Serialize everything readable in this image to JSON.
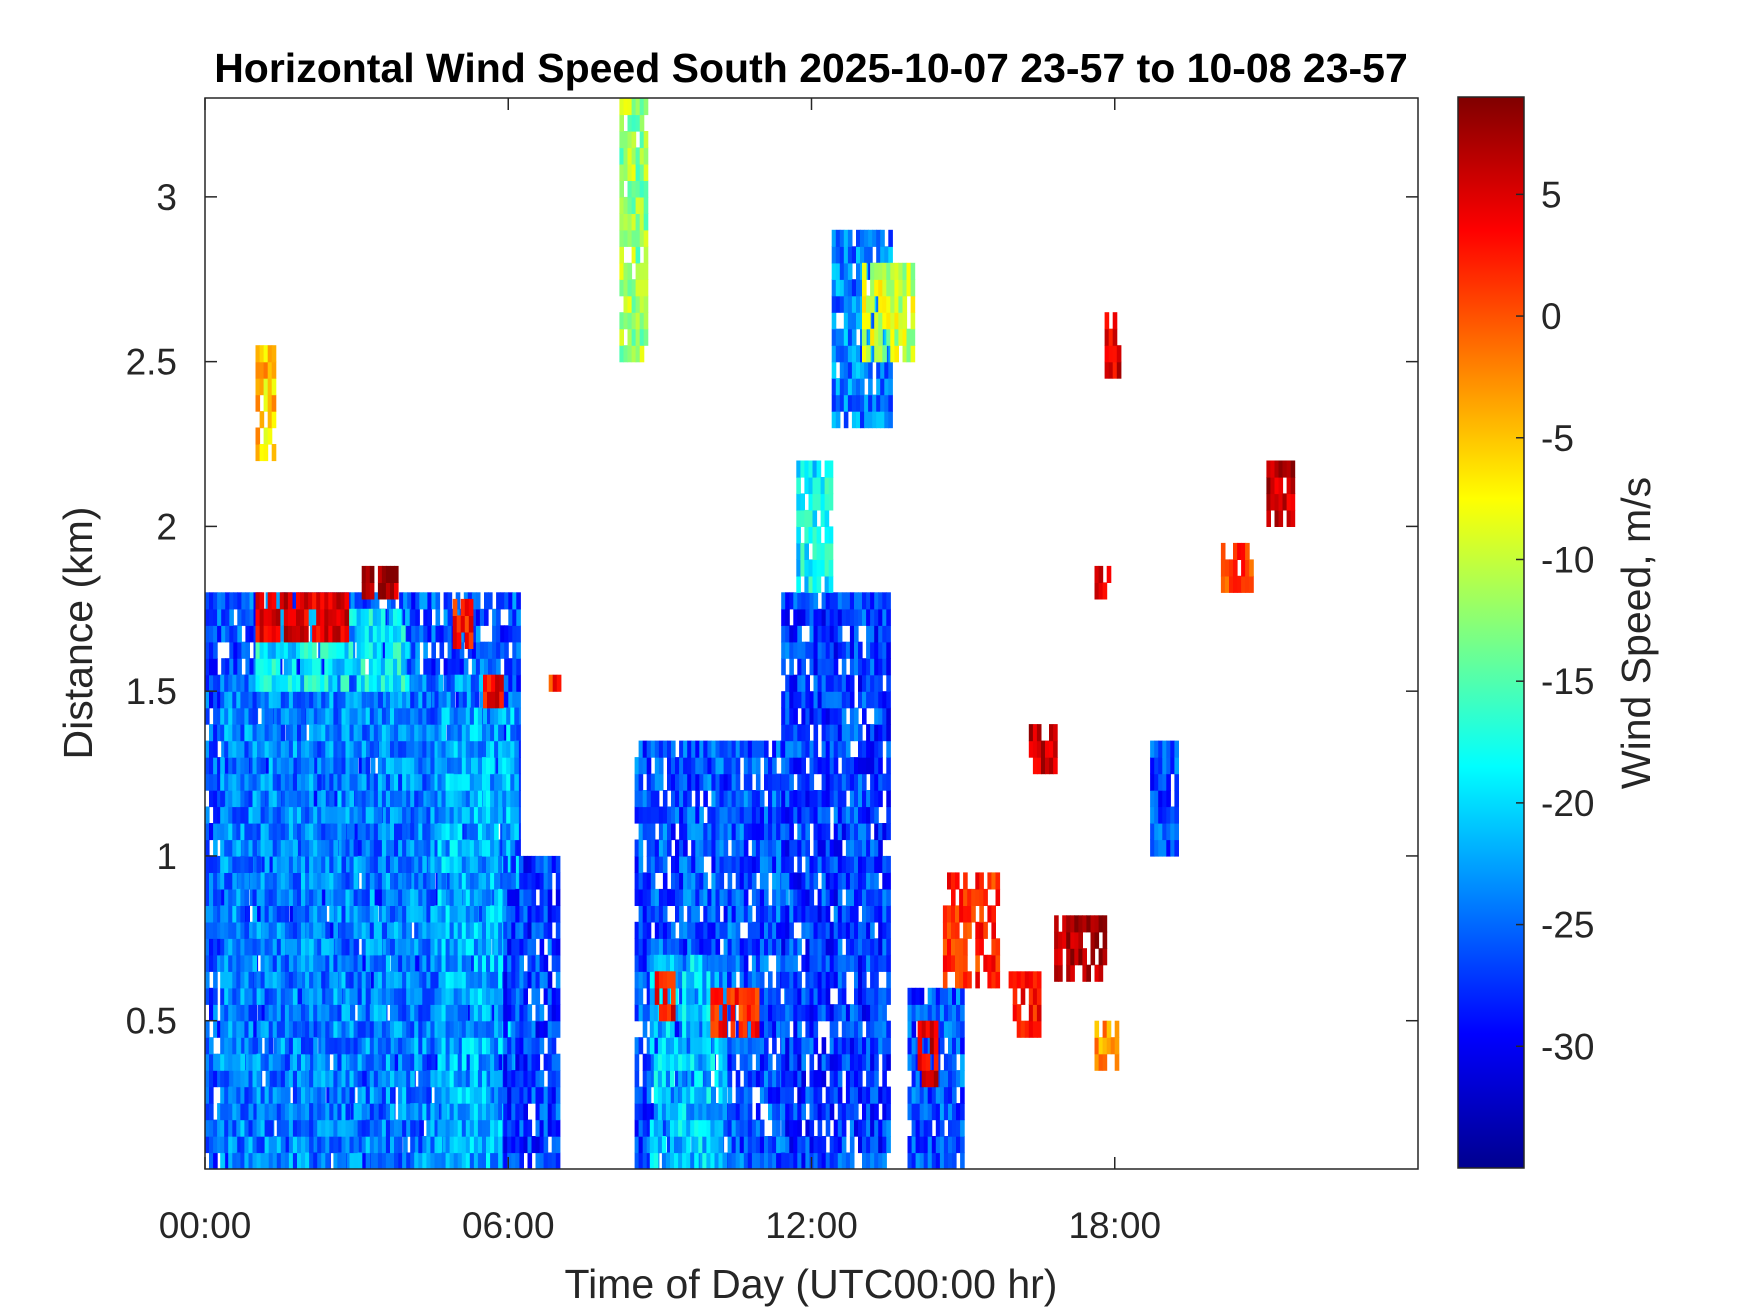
{
  "chart_data": {
    "type": "heatmap",
    "title": "Horizontal Wind Speed South 2025-10-07 23-57 to 10-08 23-57",
    "xlabel": "Time of Day (UTC00:00 hr)",
    "ylabel": "Distance (km)",
    "colorbar_label": "Wind Speed, m/s",
    "colormap": "jet",
    "xlim": [
      0,
      24
    ],
    "ylim": [
      0.05,
      3.3
    ],
    "clim": [
      -35,
      9
    ],
    "x_ticks": [
      {
        "value": 0,
        "label": "00:00"
      },
      {
        "value": 6,
        "label": "06:00"
      },
      {
        "value": 12,
        "label": "12:00"
      },
      {
        "value": 18,
        "label": "18:00"
      }
    ],
    "y_ticks": [
      {
        "value": 0.5,
        "label": "0.5"
      },
      {
        "value": 1,
        "label": "1"
      },
      {
        "value": 1.5,
        "label": "1.5"
      },
      {
        "value": 2,
        "label": "2"
      },
      {
        "value": 2.5,
        "label": "2.5"
      },
      {
        "value": 3,
        "label": "3"
      }
    ],
    "colorbar_ticks": [
      {
        "value": 5,
        "label": "5"
      },
      {
        "value": 0,
        "label": "0"
      },
      {
        "value": -5,
        "label": "-5"
      },
      {
        "value": -10,
        "label": "-10"
      },
      {
        "value": -15,
        "label": "-15"
      },
      {
        "value": -20,
        "label": "-20"
      },
      {
        "value": -25,
        "label": "-25"
      },
      {
        "value": -30,
        "label": "-30"
      }
    ],
    "grid": false,
    "legend": "colorbar-right",
    "regions": [
      {
        "t": [
          0.0,
          6.2
        ],
        "d": [
          0.05,
          1.8
        ],
        "v": -26
      },
      {
        "t": [
          0.3,
          5.6
        ],
        "d": [
          0.05,
          1.55
        ],
        "v": -24
      },
      {
        "t": [
          1.0,
          4.0
        ],
        "d": [
          1.5,
          1.75
        ],
        "v": -19
      },
      {
        "t": [
          4.6,
          6.2
        ],
        "d": [
          0.05,
          1.45
        ],
        "v": -22
      },
      {
        "t": [
          5.9,
          7.0
        ],
        "d": [
          0.05,
          1.0
        ],
        "v": -27
      },
      {
        "t": [
          8.5,
          11.5
        ],
        "d": [
          0.05,
          1.35
        ],
        "v": -26
      },
      {
        "t": [
          8.8,
          10.3
        ],
        "d": [
          0.05,
          0.7
        ],
        "v": -21
      },
      {
        "t": [
          11.4,
          13.5
        ],
        "d": [
          0.05,
          1.8
        ],
        "v": -27
      },
      {
        "t": [
          11.7,
          12.4
        ],
        "d": [
          1.8,
          2.15
        ],
        "v": -19
      },
      {
        "t": [
          12.4,
          13.6
        ],
        "d": [
          2.3,
          2.85
        ],
        "v": -24
      },
      {
        "t": [
          13.0,
          14.0
        ],
        "d": [
          2.5,
          2.75
        ],
        "v": -10
      },
      {
        "t": [
          13.9,
          15.0
        ],
        "d": [
          0.05,
          0.55
        ],
        "v": -26
      },
      {
        "t": [
          18.7,
          19.2
        ],
        "d": [
          1.0,
          1.35
        ],
        "v": -26
      },
      {
        "t": [
          8.2,
          8.7
        ],
        "d": [
          2.5,
          3.25
        ],
        "v": -12
      },
      {
        "t": [
          1.0,
          1.4
        ],
        "d": [
          2.2,
          2.5
        ],
        "v": -5
      }
    ],
    "hotspots": [
      {
        "t": [
          1.0,
          2.8
        ],
        "d": [
          1.65,
          1.78
        ],
        "v": 5
      },
      {
        "t": [
          3.1,
          3.8
        ],
        "d": [
          1.78,
          1.88
        ],
        "v": 6
      },
      {
        "t": [
          4.9,
          5.3
        ],
        "d": [
          1.63,
          1.75
        ],
        "v": 3
      },
      {
        "t": [
          5.5,
          5.9
        ],
        "d": [
          1.45,
          1.55
        ],
        "v": 4
      },
      {
        "t": [
          6.8,
          7.0
        ],
        "d": [
          1.45,
          1.55
        ],
        "v": 2
      },
      {
        "t": [
          8.9,
          9.3
        ],
        "d": [
          0.5,
          0.65
        ],
        "v": 3
      },
      {
        "t": [
          10.0,
          10.9
        ],
        "d": [
          0.45,
          0.6
        ],
        "v": 2
      },
      {
        "t": [
          14.1,
          14.5
        ],
        "d": [
          0.3,
          0.45
        ],
        "v": 5
      },
      {
        "t": [
          14.6,
          15.7
        ],
        "d": [
          0.6,
          0.95
        ],
        "v": 2
      },
      {
        "t": [
          15.9,
          16.5
        ],
        "d": [
          0.45,
          0.62
        ],
        "v": 3
      },
      {
        "t": [
          16.3,
          16.8
        ],
        "d": [
          1.25,
          1.4
        ],
        "v": 6
      },
      {
        "t": [
          16.8,
          17.8
        ],
        "d": [
          0.62,
          0.78
        ],
        "v": 7
      },
      {
        "t": [
          17.8,
          18.1
        ],
        "d": [
          2.45,
          2.6
        ],
        "v": 5
      },
      {
        "t": [
          17.6,
          17.9
        ],
        "d": [
          1.78,
          1.88
        ],
        "v": 4
      },
      {
        "t": [
          20.1,
          20.7
        ],
        "d": [
          1.8,
          1.95
        ],
        "v": 1
      },
      {
        "t": [
          21.0,
          21.5
        ],
        "d": [
          2.0,
          2.15
        ],
        "v": 6
      },
      {
        "t": [
          17.6,
          18.0
        ],
        "d": [
          0.35,
          0.45
        ],
        "v": -3
      }
    ]
  }
}
